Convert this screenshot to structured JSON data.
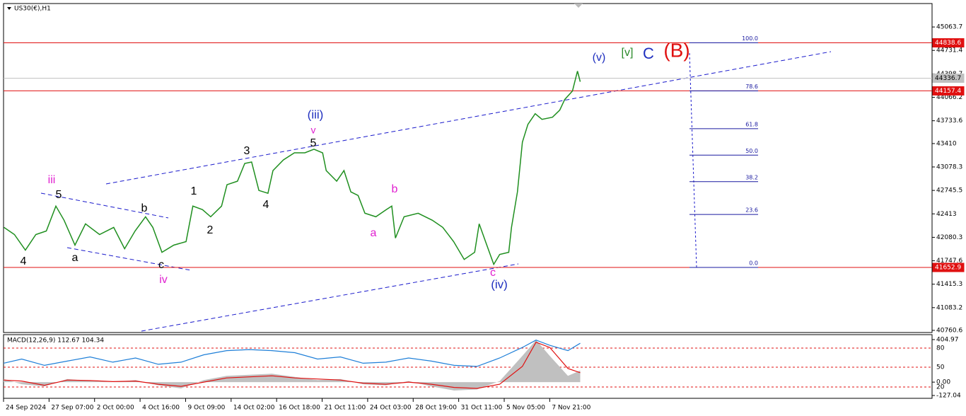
{
  "chart_data": [
    {
      "type": "line",
      "title": "US30(€),H1",
      "x": [
        -0.39,
        -0.16,
        0.08,
        0.31,
        0.54,
        0.75,
        0.93,
        1.17,
        1.4,
        1.71,
        2.02,
        2.26,
        2.49,
        2.72,
        2.88,
        3.08,
        3.34,
        3.61,
        3.76,
        3.97,
        4.15,
        4.39,
        4.51,
        4.74,
        4.9,
        5.05,
        5.21,
        5.41,
        5.52,
        5.75,
        5.99,
        6.22,
        6.42,
        6.61,
        6.69,
        6.92,
        7.08,
        7.23,
        7.39,
        7.54,
        7.78,
        8.01,
        8.13,
        8.21,
        8.4,
        8.71,
        9.02,
        9.25,
        9.49,
        9.72,
        9.95,
        10.05,
        10.19,
        10.37,
        10.5,
        10.7,
        10.76,
        10.89,
        11.0,
        11.12,
        11.28,
        11.43,
        11.66,
        11.82,
        11.93,
        12.1,
        12.21,
        12.27
      ],
      "values": [
        42221,
        42120,
        41898,
        42120,
        42170,
        42523,
        42322,
        41969,
        42271,
        42120,
        42221,
        41918,
        42170,
        42372,
        42221,
        41868,
        41969,
        42019,
        42523,
        42473,
        42372,
        42523,
        42826,
        42876,
        43128,
        43148,
        42745,
        42705,
        43027,
        43178,
        43279,
        43279,
        43330,
        43279,
        43027,
        42876,
        43027,
        42725,
        42674,
        42422,
        42372,
        42473,
        42523,
        42070,
        42372,
        42422,
        42322,
        42221,
        42019,
        41767,
        41868,
        42271,
        42019,
        41697,
        41838,
        41868,
        42221,
        42725,
        43430,
        43682,
        43834,
        43753,
        43783,
        43884,
        44035,
        44156,
        44438,
        44287
      ],
      "color": "#1f8f1f",
      "xlim": [
        -0.4,
        20.0
      ],
      "xticks": [
        {
          "value": -0.4,
          "label": "24 Sep 2024"
        },
        {
          "value": 0.6,
          "label": "27 Sep 07:00"
        },
        {
          "value": 1.6,
          "label": "2 Oct 00:00"
        },
        {
          "value": 2.6,
          "label": "4 Oct 16:00"
        },
        {
          "value": 3.6,
          "label": "9 Oct 09:00"
        },
        {
          "value": 4.6,
          "label": "14 Oct 02:00"
        },
        {
          "value": 5.6,
          "label": "16 Oct 18:00"
        },
        {
          "value": 6.6,
          "label": "21 Oct 11:00"
        },
        {
          "value": 7.6,
          "label": "24 Oct 03:00"
        },
        {
          "value": 8.6,
          "label": "28 Oct 19:00"
        },
        {
          "value": 9.6,
          "label": "31 Oct 11:00"
        },
        {
          "value": 10.6,
          "label": "5 Nov 05:00"
        },
        {
          "value": 11.6,
          "label": "7 Nov 21:00"
        }
      ],
      "ylim": [
        40730,
        45396
      ],
      "yticks": [
        45063.7,
        44731.4,
        44398.7,
        44066.2,
        43733.6,
        43410.0,
        43078.3,
        42745.5,
        42413.0,
        42080.3,
        41747.6,
        41415.3,
        41083.2,
        40760.6
      ],
      "price_lines": [
        {
          "value": 44838.6,
          "color": "#e01010",
          "text_color": "#ffffff"
        },
        {
          "value": 44336.7,
          "color": "#c0c0c0",
          "text_color": "#000000"
        },
        {
          "value": 44157.4,
          "color": "#e01010",
          "text_color": "#ffffff"
        },
        {
          "value": 41652.9,
          "color": "#e01010",
          "text_color": "#ffffff"
        }
      ],
      "fib_color": "#1a1aa0",
      "fib_levels": [
        {
          "value": 100,
          "label": "100.0"
        },
        78.6,
        61.8,
        {
          "value": 50,
          "label": "50.0"
        },
        38.2,
        23.6,
        {
          "value": 0,
          "label": "0.0"
        }
      ],
      "annotations": [
        {
          "text": "(v)",
          "color": "#1f2fbf"
        },
        {
          "text": "[v]",
          "color": "#2a8a2a"
        },
        {
          "text": "C",
          "color": "#1f2fbf"
        },
        {
          "text": "(B)",
          "color": "#e01010"
        },
        {
          "text": "(iii)",
          "color": "#1f2fbf"
        },
        {
          "text": "v",
          "color": "#e020d0"
        },
        {
          "text": "5",
          "color": "#000000"
        },
        {
          "text": "3",
          "color": "#000000"
        },
        {
          "text": "1",
          "color": "#000000"
        },
        {
          "text": "2",
          "color": "#000000"
        },
        {
          "text": "4",
          "color": "#000000"
        },
        {
          "text": "iii",
          "color": "#e020d0"
        },
        {
          "text": "5",
          "color": "#000000"
        },
        {
          "text": "4",
          "color": "#000000"
        },
        {
          "text": "a",
          "color": "#000000"
        },
        {
          "text": "b",
          "color": "#000000"
        },
        {
          "text": "c",
          "color": "#000000"
        },
        {
          "text": "iv",
          "color": "#e020d0"
        },
        {
          "text": "a",
          "color": "#e020d0"
        },
        {
          "text": "b",
          "color": "#e020d0"
        },
        {
          "text": "c",
          "color": "#e020d0"
        },
        {
          "text": "(iv)",
          "color": "#1f2fbf"
        }
      ]
    },
    {
      "type": "macd",
      "title": "MACD(12,26,9) 112.67 104.34",
      "x": [
        -0.4,
        0,
        0.5,
        1,
        1.5,
        2,
        2.5,
        3,
        3.5,
        4,
        4.5,
        5,
        5.5,
        6,
        6.5,
        7,
        7.5,
        8,
        8.5,
        9,
        9.5,
        10,
        10.5,
        11,
        11.3,
        11.6,
        12,
        12.27
      ],
      "histogram": {
        "color": "#c0c0c0",
        "values": [
          30,
          -20,
          -40,
          30,
          10,
          0,
          20,
          -30,
          -60,
          20,
          60,
          70,
          80,
          50,
          20,
          30,
          -20,
          -30,
          10,
          -40,
          -80,
          -70,
          10,
          250,
          400,
          250,
          60,
          110
        ]
      },
      "signal": {
        "color": "#e01010",
        "values": [
          20,
          10,
          -30,
          20,
          15,
          5,
          10,
          -20,
          -40,
          0,
          40,
          50,
          60,
          40,
          30,
          20,
          -10,
          -20,
          0,
          -20,
          -50,
          -60,
          -20,
          150,
          380,
          330,
          130,
          90
        ]
      },
      "macd_line": {
        "color": "#1e7fd8",
        "values": [
          180,
          220,
          160,
          200,
          240,
          190,
          230,
          170,
          190,
          260,
          300,
          310,
          300,
          280,
          220,
          240,
          180,
          190,
          230,
          200,
          160,
          150,
          230,
          330,
          400,
          350,
          300,
          370
        ]
      },
      "ylim": [
        -154,
        452
      ],
      "yticks": [
        404.97,
        {
          "value": 0,
          "label": "0.00"
        },
        -127.04
      ],
      "levels": [
        80,
        50,
        20
      ]
    }
  ]
}
